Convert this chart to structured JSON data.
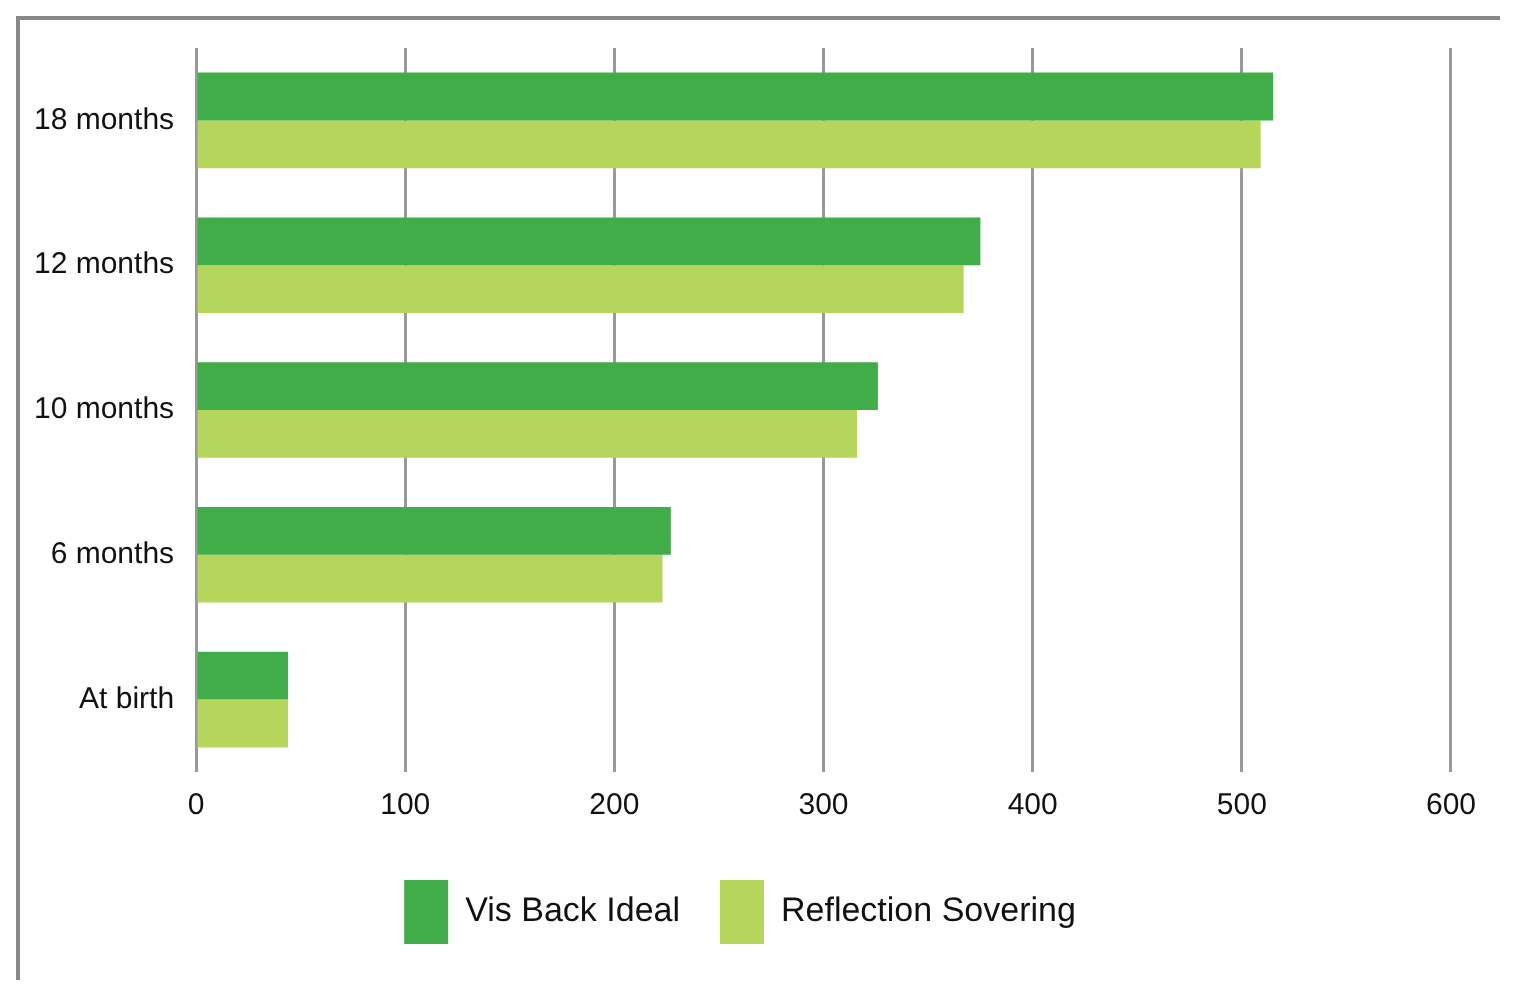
{
  "chart_data": {
    "type": "bar",
    "orientation": "horizontal",
    "categories": [
      "18 months",
      "12 months",
      "10 months",
      "6 months",
      "At birth"
    ],
    "series": [
      {
        "name": "Vis Back Ideal",
        "color": "#41ad49",
        "values": [
          515,
          375,
          326,
          227,
          44
        ]
      },
      {
        "name": "Reflection Sovering",
        "color": "#b5d65a",
        "values": [
          509,
          367,
          316,
          223,
          44
        ]
      }
    ],
    "xlim": [
      0,
      600
    ],
    "xticks": [
      0,
      100,
      200,
      300,
      400,
      500,
      600
    ],
    "grid": "x",
    "legend": "bottom"
  }
}
